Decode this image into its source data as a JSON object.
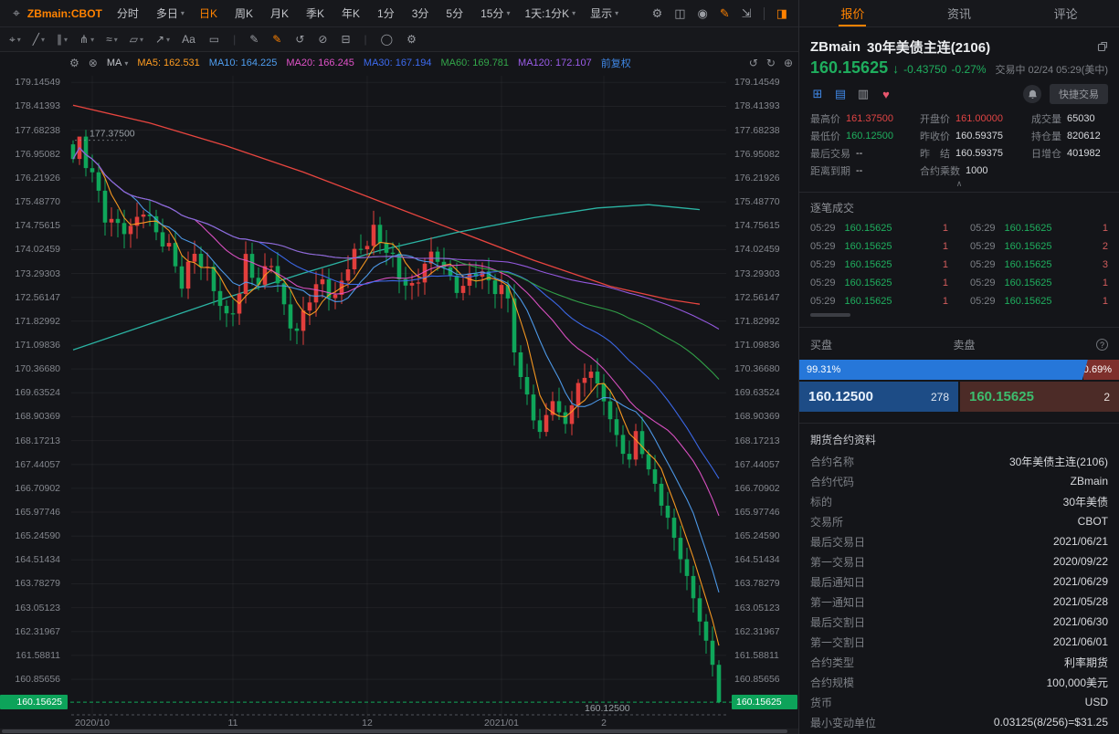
{
  "colors": {
    "accent_orange": "#ff8200",
    "up_red": "#e23e3c",
    "down_green": "#0fa65a",
    "blue_link": "#3f87e5",
    "tag_green": "#0da35a",
    "bid_blue": "#2677d9",
    "ask_red": "#7e2f2c"
  },
  "icons": {
    "pan": "⌖",
    "settings": "⚙",
    "layout": "◫",
    "camera": "◉",
    "draw": "✎",
    "fullscreen": "⇲",
    "panel": "◨",
    "close": "⊗",
    "caret": "▾",
    "undo": "↺",
    "redo": "↻",
    "plus": "⊕",
    "grid": "⊞",
    "list": "▤",
    "doc": "▥",
    "heart": "♥",
    "chevron_up": "∧",
    "down_arrow": "↓",
    "help": "?"
  },
  "toolbar": {
    "symbol": "ZBmain:CBOT",
    "items": [
      {
        "label": "分时"
      },
      {
        "label": "多日",
        "caret": "▾"
      },
      {
        "label": "日K",
        "cls": "active"
      },
      {
        "label": "周K"
      },
      {
        "label": "月K"
      },
      {
        "label": "季K"
      },
      {
        "label": "年K"
      },
      {
        "label": "1分"
      },
      {
        "label": "3分"
      },
      {
        "label": "5分"
      },
      {
        "label": "15分",
        "caret": "▾"
      },
      {
        "label": "1天:1分K",
        "caret": "▾"
      },
      {
        "label": "显示",
        "caret": "▾"
      }
    ],
    "right_icons": [
      {
        "name": "chart-settings-icon",
        "glyph": "⚙"
      },
      {
        "name": "layout-icon",
        "glyph": "◫"
      },
      {
        "name": "screenshot-icon",
        "glyph": "◉"
      },
      {
        "name": "draw-mode-icon",
        "glyph": "✎",
        "color": "#ff8200"
      },
      {
        "name": "fullscreen-icon",
        "glyph": "⇲"
      },
      {
        "name": "toolbar-divider",
        "glyph": "|",
        "cls": "divider"
      },
      {
        "name": "panel-toggle-icon",
        "glyph": "◨",
        "color": "#ff8200"
      }
    ]
  },
  "draw_toolbar": {
    "tools": [
      {
        "name": "cursor-tool-icon",
        "glyph": "⌖",
        "caret": "▾"
      },
      {
        "name": "trendline-tool-icon",
        "glyph": "╱",
        "caret": "▾"
      },
      {
        "name": "channel-tool-icon",
        "glyph": "∥",
        "caret": "▾"
      },
      {
        "name": "pitchfork-tool-icon",
        "glyph": "⋔",
        "caret": "▾"
      },
      {
        "name": "brush-tool-icon",
        "glyph": "≈",
        "caret": "▾"
      },
      {
        "name": "shape-tool-icon",
        "glyph": "▱",
        "caret": "▾"
      },
      {
        "name": "arrow-tool-icon",
        "glyph": "↗",
        "caret": "▾"
      },
      {
        "name": "text-tool-icon",
        "glyph": "Aa"
      },
      {
        "name": "comment-tool-icon",
        "glyph": "▭"
      },
      {
        "name": "tool-sep-1",
        "glyph": "|",
        "cls": "sep"
      },
      {
        "name": "pen-tool-icon",
        "glyph": "✎"
      },
      {
        "name": "marker-tool-icon",
        "glyph": "✎",
        "color": "#ff8200"
      },
      {
        "name": "refresh-drawings-icon",
        "glyph": "↺"
      },
      {
        "name": "hide-drawings-icon",
        "glyph": "⊘"
      },
      {
        "name": "delete-drawings-icon",
        "glyph": "⊟"
      },
      {
        "name": "tool-sep-2",
        "glyph": "|",
        "cls": "sep"
      },
      {
        "name": "oval-tool-icon",
        "glyph": "◯"
      },
      {
        "name": "draw-settings-icon",
        "glyph": "⚙"
      }
    ]
  },
  "indicator_bar": {
    "ma_label": "MA",
    "mas": [
      {
        "label": "MA5:",
        "value": "162.531",
        "color": "#ff9d21"
      },
      {
        "label": "MA10:",
        "value": "164.225",
        "color": "#4f9ef0"
      },
      {
        "label": "MA20:",
        "value": "166.245",
        "color": "#e052c8"
      },
      {
        "label": "MA30:",
        "value": "167.194",
        "color": "#3d6bf0"
      },
      {
        "label": "MA60:",
        "value": "169.781",
        "color": "#33a64a"
      },
      {
        "label": "MA120:",
        "value": "172.107",
        "color": "#9a5ce8"
      }
    ],
    "adjust_label": "前复权",
    "right_icons": [
      {
        "name": "undo-icon",
        "glyph": "↺"
      },
      {
        "name": "redo-icon",
        "glyph": "↻"
      },
      {
        "name": "add-indicator-icon",
        "glyph": "⊕"
      }
    ]
  },
  "chart": {
    "type": "candlestick",
    "current_price": "160.15625",
    "low_label": "160.12500",
    "high_label": "177.37500",
    "price_top": 179.35,
    "price_bottom": 159.6,
    "candle_count": 102,
    "up_color": "#e23e3c",
    "down_color": "#0fa65a",
    "y_labels": [
      "179.14549",
      "178.41393",
      "177.68238",
      "176.95082",
      "176.21926",
      "175.48770",
      "174.75615",
      "174.02459",
      "173.29303",
      "172.56147",
      "171.82992",
      "171.09836",
      "170.36680",
      "169.63524",
      "168.90369",
      "168.17213",
      "167.44057",
      "166.70902",
      "165.97746",
      "165.24590",
      "164.51434",
      "163.78279",
      "163.05123",
      "162.31967",
      "161.58811",
      "160.85656"
    ],
    "x_labels": [
      {
        "label": "2020/10",
        "i": 3
      },
      {
        "label": "11",
        "i": 25
      },
      {
        "label": "12",
        "i": 46
      },
      {
        "label": "2021/01",
        "i": 67
      },
      {
        "label": "2",
        "i": 83
      }
    ],
    "ma_windows": [
      5,
      10,
      20,
      30,
      60,
      120
    ],
    "ma_colors": [
      "#ff9d21",
      "#4f9ef0",
      "#e052c8",
      "#3d6bf0",
      "#33a64a",
      "#9a5ce8"
    ],
    "close_anchors": [
      [
        0,
        176.8
      ],
      [
        1,
        177.2
      ],
      [
        2,
        176.6
      ],
      [
        3,
        176.3
      ],
      [
        5,
        175.2
      ],
      [
        7,
        174.7
      ],
      [
        9,
        174.5
      ],
      [
        11,
        175.4
      ],
      [
        13,
        174.6
      ],
      [
        15,
        173.9
      ],
      [
        17,
        173.0
      ],
      [
        19,
        174.1
      ],
      [
        21,
        173.2
      ],
      [
        23,
        172.3
      ],
      [
        24,
        171.9
      ],
      [
        26,
        172.8
      ],
      [
        27,
        173.7
      ],
      [
        29,
        172.8
      ],
      [
        31,
        173.8
      ],
      [
        33,
        172.3
      ],
      [
        35,
        171.3
      ],
      [
        37,
        172.6
      ],
      [
        39,
        173.2
      ],
      [
        41,
        172.4
      ],
      [
        43,
        173.5
      ],
      [
        45,
        174.2
      ],
      [
        47,
        174.6
      ],
      [
        49,
        173.9
      ],
      [
        51,
        173.3
      ],
      [
        53,
        172.9
      ],
      [
        55,
        173.5
      ],
      [
        57,
        173.8
      ],
      [
        59,
        173.2
      ],
      [
        61,
        172.8
      ],
      [
        63,
        173.3
      ],
      [
        65,
        173.1
      ],
      [
        67,
        172.9
      ],
      [
        68,
        172.5
      ],
      [
        69,
        170.9
      ],
      [
        70,
        170.0
      ],
      [
        71,
        169.6
      ],
      [
        72,
        168.9
      ],
      [
        73,
        168.4
      ],
      [
        74,
        169.0
      ],
      [
        75,
        169.4
      ],
      [
        76,
        168.9
      ],
      [
        77,
        168.7
      ],
      [
        78,
        169.3
      ],
      [
        79,
        169.9
      ],
      [
        80,
        170.2
      ],
      [
        81,
        170.3
      ],
      [
        82,
        169.8
      ],
      [
        83,
        169.4
      ],
      [
        84,
        168.8
      ],
      [
        85,
        168.3
      ],
      [
        86,
        167.9
      ],
      [
        87,
        167.6
      ],
      [
        88,
        168.4
      ],
      [
        89,
        167.8
      ],
      [
        90,
        167.2
      ],
      [
        91,
        166.8
      ],
      [
        92,
        166.3
      ],
      [
        93,
        165.8
      ],
      [
        94,
        165.2
      ],
      [
        95,
        164.6
      ],
      [
        96,
        163.9
      ],
      [
        97,
        163.3
      ],
      [
        98,
        162.7
      ],
      [
        99,
        162.0
      ],
      [
        100,
        161.3
      ],
      [
        101,
        160.156
      ]
    ],
    "red_line": [
      [
        0,
        178.45
      ],
      [
        12,
        177.9
      ],
      [
        24,
        177.2
      ],
      [
        36,
        176.4
      ],
      [
        48,
        175.5
      ],
      [
        60,
        174.6
      ],
      [
        72,
        173.7
      ],
      [
        84,
        172.9
      ],
      [
        93,
        172.5
      ],
      [
        98,
        172.35
      ]
    ],
    "teal_line": [
      [
        0,
        170.95
      ],
      [
        12,
        171.75
      ],
      [
        24,
        172.55
      ],
      [
        36,
        173.3
      ],
      [
        48,
        174.0
      ],
      [
        60,
        174.55
      ],
      [
        72,
        175.0
      ],
      [
        82,
        175.3
      ],
      [
        90,
        175.4
      ],
      [
        98,
        175.25
      ]
    ],
    "red_line_color": "#e8453f",
    "teal_line_color": "#2bb3a3"
  },
  "quote": {
    "tabs": [
      {
        "label": "报价",
        "cls": "active"
      },
      {
        "label": "资讯"
      },
      {
        "label": "评论"
      }
    ],
    "symbol": "ZBmain",
    "name": "30年美债主连(2106)",
    "price": "160.15625",
    "change": "-0.43750",
    "change_pct": "-0.27%",
    "status": "交易中 02/24 05:29(美中)",
    "quick_trade_label": "快捷交易",
    "stats": [
      {
        "label": "最高价",
        "value": "161.37500",
        "cls": "red"
      },
      {
        "label": "开盘价",
        "value": "161.00000",
        "cls": "red"
      },
      {
        "label": "成交量",
        "value": "65030"
      },
      {
        "label": "最低价",
        "value": "160.12500",
        "cls": "green"
      },
      {
        "label": "昨收价",
        "value": "160.59375"
      },
      {
        "label": "持仓量",
        "value": "820612"
      },
      {
        "label": "最后交易",
        "value": "--"
      },
      {
        "label": "昨　结",
        "value": "160.59375"
      },
      {
        "label": "日增仓",
        "value": "401982"
      },
      {
        "label": "距离到期",
        "value": "--"
      },
      {
        "label": "合约乘数",
        "value": "1000"
      },
      {
        "label": "",
        "value": ""
      }
    ],
    "ticks_title": "逐笔成交",
    "ticks": [
      {
        "t": "05:29",
        "p": "160.15625",
        "q": "1"
      },
      {
        "t": "05:29",
        "p": "160.15625",
        "q": "1"
      },
      {
        "t": "05:29",
        "p": "160.15625",
        "q": "1"
      },
      {
        "t": "05:29",
        "p": "160.15625",
        "q": "2"
      },
      {
        "t": "05:29",
        "p": "160.15625",
        "q": "1"
      },
      {
        "t": "05:29",
        "p": "160.15625",
        "q": "3"
      },
      {
        "t": "05:29",
        "p": "160.15625",
        "q": "1"
      },
      {
        "t": "05:29",
        "p": "160.15625",
        "q": "1"
      },
      {
        "t": "05:29",
        "p": "160.15625",
        "q": "1"
      },
      {
        "t": "05:29",
        "p": "160.15625",
        "q": "1"
      }
    ],
    "bid_title": "买盘",
    "ask_title": "卖盘",
    "bid_pct": "99.31%",
    "ask_pct": "0.69%",
    "bid_ratio": 99.31,
    "bid_price": "160.12500",
    "bid_qty": "278",
    "ask_price": "160.15625",
    "ask_qty": "2",
    "info_title": "期货合约资料",
    "info_rows": [
      {
        "label": "合约名称",
        "value": "30年美债主连(2106)"
      },
      {
        "label": "合约代码",
        "value": "ZBmain"
      },
      {
        "label": "标的",
        "value": "30年美债"
      },
      {
        "label": "交易所",
        "value": "CBOT"
      },
      {
        "label": "最后交易日",
        "value": "2021/06/21"
      },
      {
        "label": "第一交易日",
        "value": "2020/09/22"
      },
      {
        "label": "最后通知日",
        "value": "2021/06/29"
      },
      {
        "label": "第一通知日",
        "value": "2021/05/28"
      },
      {
        "label": "最后交割日",
        "value": "2021/06/30"
      },
      {
        "label": "第一交割日",
        "value": "2021/06/01"
      },
      {
        "label": "合约类型",
        "value": "利率期货"
      },
      {
        "label": "合约规模",
        "value": "100,000美元"
      },
      {
        "label": "货币",
        "value": "USD"
      },
      {
        "label": "最小变动单位",
        "value": "0.03125(8/256)=$31.25"
      }
    ]
  }
}
